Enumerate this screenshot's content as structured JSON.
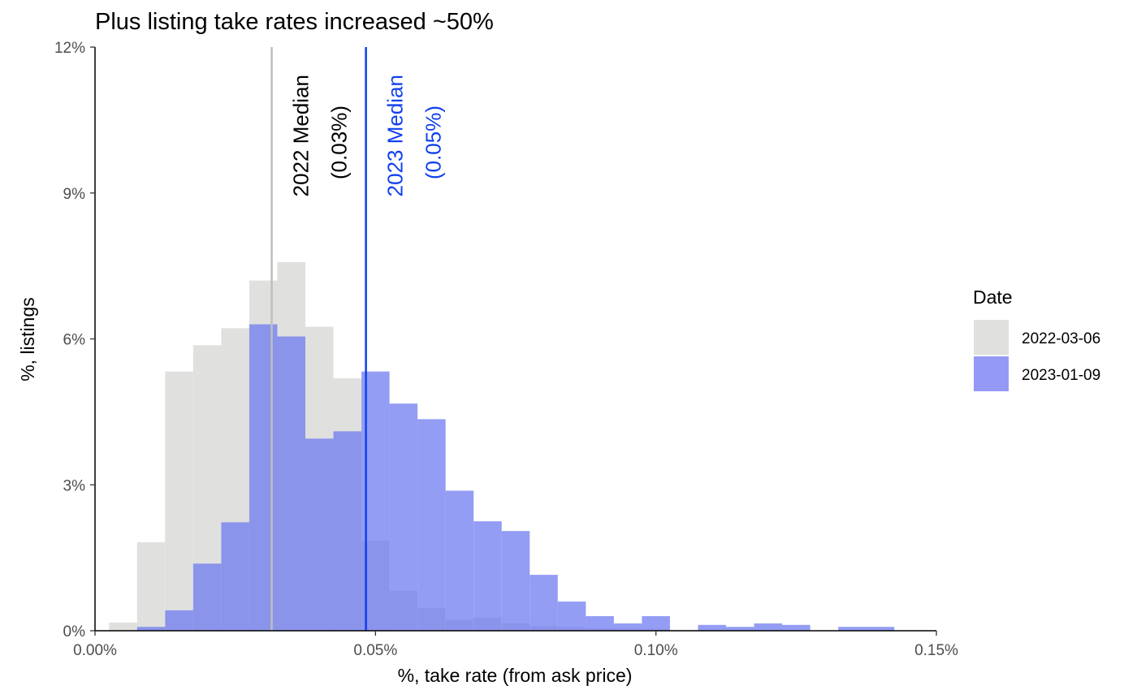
{
  "chart_data": {
    "type": "bar",
    "title": "Plus listing take rates increased ~50%",
    "xlabel": "%, take rate (from ask price)",
    "ylabel": "%, listings",
    "xlim": [
      0.0,
      0.15
    ],
    "ylim": [
      0,
      12
    ],
    "x_ticks": [
      0.0,
      0.05,
      0.1,
      0.15
    ],
    "x_tick_labels": [
      "0.00%",
      "0.05%",
      "0.10%",
      "0.15%"
    ],
    "y_ticks": [
      0,
      3,
      6,
      9,
      12
    ],
    "y_tick_labels": [
      "0%",
      "3%",
      "6%",
      "9%",
      "12%"
    ],
    "bin_width": 0.005,
    "bin_starts": [
      0.0025,
      0.0075,
      0.0125,
      0.0175,
      0.0225,
      0.0275,
      0.0325,
      0.0375,
      0.0425,
      0.0475,
      0.0525,
      0.0575,
      0.0625,
      0.0675,
      0.0725,
      0.0775,
      0.0825,
      0.0875,
      0.0925,
      0.0975,
      0.1025,
      0.1075,
      0.1125,
      0.1175,
      0.1225,
      0.1275,
      0.1325,
      0.1375
    ],
    "series": [
      {
        "name": "2022-03-06",
        "color": "#e0e0df",
        "values": [
          0.17,
          1.82,
          5.33,
          5.87,
          6.22,
          7.2,
          7.58,
          6.25,
          5.19,
          1.85,
          0.82,
          0.47,
          0.22,
          0.27,
          0.15,
          0.1,
          0.08,
          0.05,
          0.05,
          0.03,
          0.02,
          0.01,
          0.01,
          0.01,
          0.0,
          0.0,
          0.0,
          0.0
        ]
      },
      {
        "name": "2023-01-09",
        "color": "#6673f0",
        "values": [
          0.0,
          0.08,
          0.42,
          1.38,
          2.23,
          6.3,
          6.05,
          3.95,
          4.1,
          5.33,
          4.67,
          4.35,
          2.88,
          2.25,
          2.05,
          1.15,
          0.6,
          0.3,
          0.15,
          0.3,
          0.0,
          0.12,
          0.08,
          0.15,
          0.12,
          0.0,
          0.08,
          0.08
        ]
      }
    ],
    "medians": [
      {
        "x": 0.0315,
        "color": "#bfbfbf",
        "line1": "2022 Median",
        "line2": "(0.03%)",
        "text_color": "#000000"
      },
      {
        "x": 0.0483,
        "color": "#0f3fef",
        "line1": "2023 Median",
        "line2": "(0.05%)",
        "text_color": "#0f3fef"
      }
    ],
    "legend": {
      "title": "Date",
      "position": "right",
      "items": [
        {
          "label": "2022-03-06",
          "color": "#e0e0df"
        },
        {
          "label": "2023-01-09",
          "color": "#9499f5"
        }
      ]
    },
    "grid": false
  }
}
